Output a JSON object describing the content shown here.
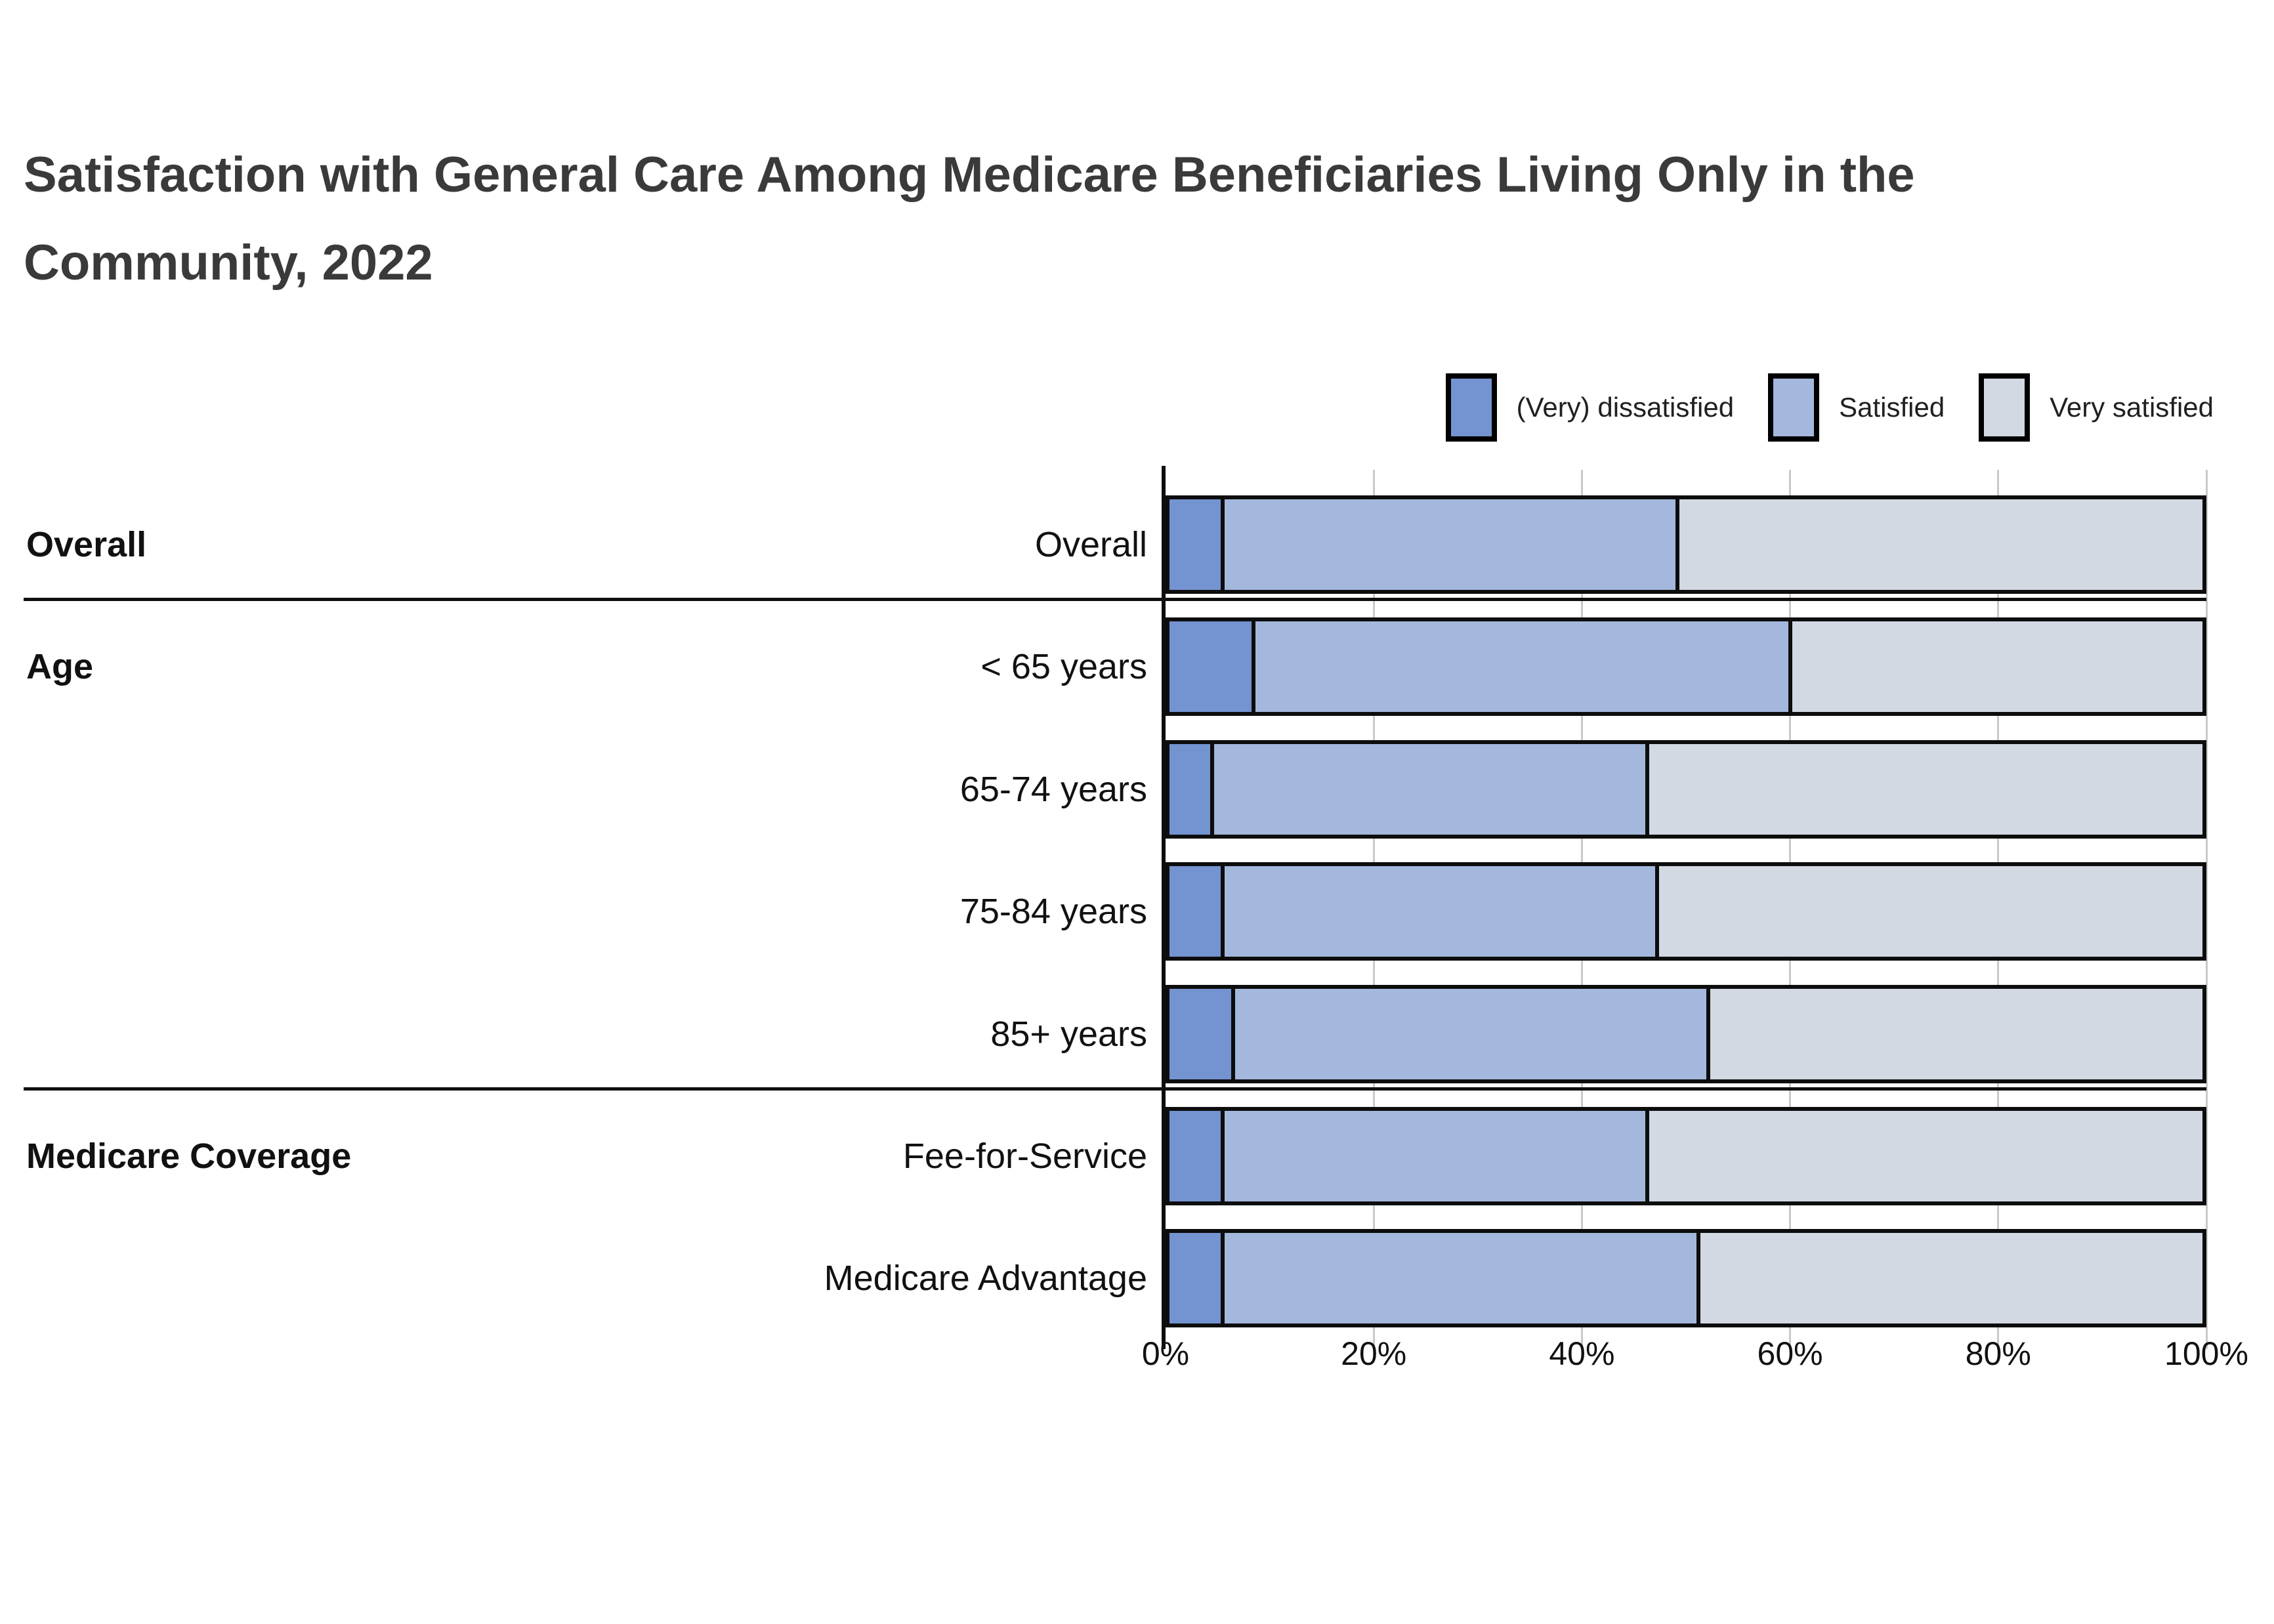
{
  "title": {
    "text": "Satisfaction with General Care Among Medicare Beneficiaries Living Only in the Community, 2022",
    "lines": [
      "Satisfaction with General Care Among Medicare Beneficiaries Living Only in the",
      "Community, 2022"
    ],
    "color": "#3a3a3a"
  },
  "chart_data": {
    "type": "bar",
    "subtype": "horizontal-stacked-100-percent",
    "title": "Satisfaction with General Care Among Medicare Beneficiaries Living Only in the Community, 2022",
    "unit": "percent",
    "legend_position": "top-right",
    "grid": "vertical",
    "xlim": [
      0,
      100
    ],
    "series": [
      {
        "name": "(Very) dissatisfied",
        "color": "#7493d1"
      },
      {
        "name": "Satisfied",
        "color": "#a3b8dc"
      },
      {
        "name": "Very satisfied",
        "color": "#d3d9e3"
      }
    ],
    "rows": [
      {
        "label": "Overall",
        "group": "Overall",
        "values": [
          5,
          44,
          51
        ]
      },
      {
        "label": "< 65 years",
        "group": "Age",
        "values": [
          8,
          52,
          40
        ]
      },
      {
        "label": "65-74 years",
        "group": "Age",
        "values": [
          4,
          42,
          54
        ]
      },
      {
        "label": "75-84 years",
        "group": "Age",
        "values": [
          5,
          42,
          53
        ]
      },
      {
        "label": "85+ years",
        "group": "Age",
        "values": [
          6,
          46,
          48
        ]
      },
      {
        "label": "Fee-for-Service",
        "group": "Medicare Coverage",
        "values": [
          5,
          41,
          54
        ]
      },
      {
        "label": "Medicare Advantage",
        "group": "Medicare Coverage",
        "values": [
          5,
          46,
          49
        ]
      }
    ],
    "x_ticks": [
      {
        "value": 0,
        "label": "0%"
      },
      {
        "value": 20,
        "label": "20%"
      },
      {
        "value": 40,
        "label": "40%"
      },
      {
        "value": 60,
        "label": "60%"
      },
      {
        "value": 80,
        "label": "80%"
      },
      {
        "value": 100,
        "label": "100%"
      }
    ],
    "bar_border_color": "#0d0d0d",
    "gridline_color": "#c9c9c9"
  }
}
